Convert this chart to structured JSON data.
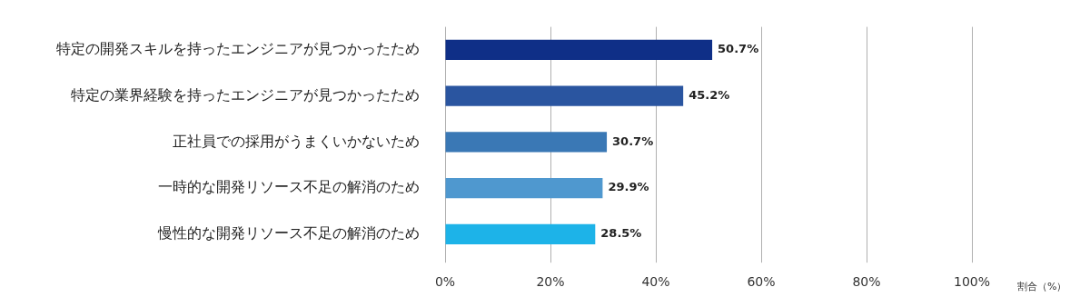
{
  "chart_data": {
    "type": "bar",
    "orientation": "horizontal",
    "xlabel": "割合（%）",
    "categories": [
      "特定の開発スキルを持ったエンジニアが見つかったため",
      "特定の業界経験を持ったエンジニアが見つかったため",
      "正社員での採用がうまくいかないため",
      "一時的な開発リソース不足の解消のため",
      "慢性的な開発リソース不足の解消のため"
    ],
    "values": [
      50.7,
      45.2,
      30.7,
      29.9,
      28.5
    ],
    "colors": [
      "#0f2f87",
      "#2a55a0",
      "#3a78b5",
      "#4f98cf",
      "#1db3e8"
    ],
    "value_labels": [
      "50.7%",
      "45.2%",
      "30.7%",
      "29.9%",
      "28.5%"
    ],
    "xlim": [
      0,
      100
    ],
    "xticks": [
      {
        "value": 0,
        "label": "0%"
      },
      {
        "value": 20,
        "label": "20%"
      },
      {
        "value": 40,
        "label": "40%"
      },
      {
        "value": 60,
        "label": "60%"
      },
      {
        "value": 80,
        "label": "80%"
      },
      {
        "value": 100,
        "label": "100%"
      }
    ],
    "grid": "x",
    "legend": false
  }
}
